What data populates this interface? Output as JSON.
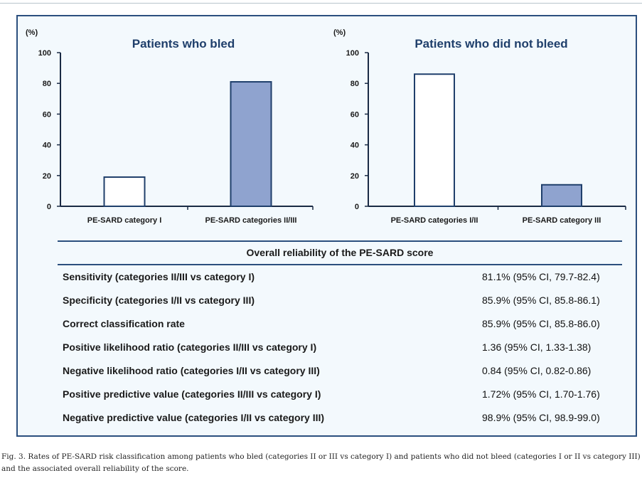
{
  "chart_data": [
    {
      "type": "bar",
      "title": "Patients who bled",
      "ylabel": "(%)",
      "ylim": [
        0,
        100
      ],
      "yticks": [
        0,
        20,
        40,
        60,
        80,
        100
      ],
      "categories": [
        "PE-SARD category I",
        "PE-SARD categories II/III"
      ],
      "values": [
        19,
        81
      ],
      "fills": [
        "#ffffff",
        "#8fa3cf"
      ]
    },
    {
      "type": "bar",
      "title": "Patients who did not bleed",
      "ylabel": "(%)",
      "ylim": [
        0,
        100
      ],
      "yticks": [
        0,
        20,
        40,
        60,
        80,
        100
      ],
      "categories": [
        "PE-SARD categories I/II",
        "PE-SARD category III"
      ],
      "values": [
        86,
        14
      ],
      "fills": [
        "#ffffff",
        "#8fa3cf"
      ]
    }
  ],
  "table": {
    "title": "Overall reliability of the PE-SARD score",
    "rows": [
      {
        "label": "Sensitivity (categories II/III vs category I)",
        "value": "81.1% (95% CI, 79.7-82.4)"
      },
      {
        "label": "Specificity (categories I/II vs category III)",
        "value": "85.9% (95% CI, 85.8-86.1)"
      },
      {
        "label": "Correct classification rate",
        "value": "85.9% (95% CI, 85.8-86.0)"
      },
      {
        "label": "Positive likelihood ratio (categories II/III vs category I)",
        "value": "1.36 (95% CI, 1.33-1.38)"
      },
      {
        "label": "Negative likelihood ratio (categories I/II vs category III)",
        "value": "0.84 (95% CI, 0.82-0.86)"
      },
      {
        "label": "Positive predictive value (categories II/III vs category I)",
        "value": "1.72% (95% CI, 1.70-1.76)"
      },
      {
        "label": "Negative predictive value (categories I/II vs category III)",
        "value": "98.9% (95% CI, 98.9-99.0)"
      }
    ]
  },
  "caption": "Fig. 3.  Rates of PE-SARD risk classification among patients who bled (categories II or III vs category I) and patients who did not bleed (categories I or II vs category III) and the associated overall reliability of the score.",
  "colors": {
    "frame": "#2b4f7e",
    "bar_fill": "#8fa3cf",
    "panel_bg": "#f3f9fd"
  }
}
